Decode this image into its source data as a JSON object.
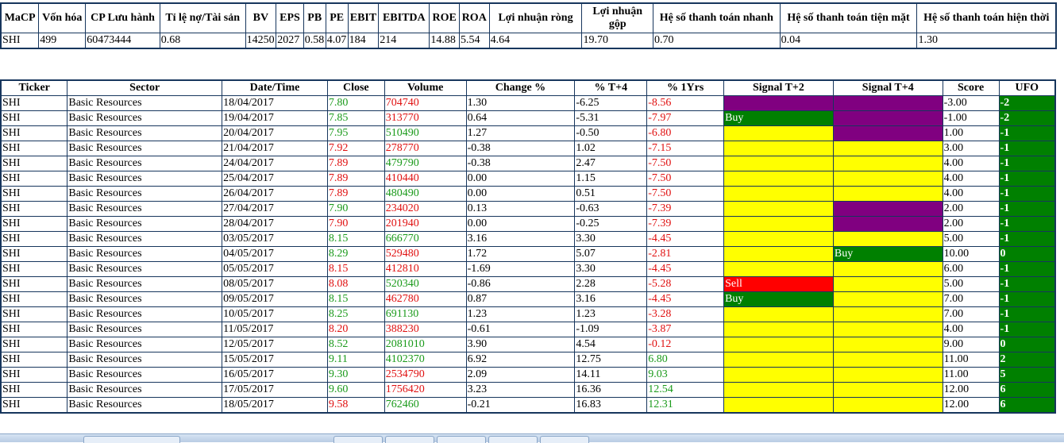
{
  "summary": {
    "headers": [
      "MaCP",
      "Vốn hóa",
      "CP Lưu hành",
      "Tỉ lệ nợ/Tài sản",
      "BV",
      "EPS",
      "PB",
      "PE",
      "EBIT",
      "EBITDA",
      "ROE",
      "ROA",
      "Lợi nhuận ròng",
      "Lợi nhuận gộp",
      "Hệ số thanh toán nhanh",
      "Hệ số thanh toán tiện mặt",
      "Hệ số thanh toán hiện thời"
    ],
    "row": [
      "SHI",
      "499",
      "60473444",
      "0.68",
      "14250",
      "2027",
      "0.58",
      "4.07",
      "184",
      "214",
      "14.88",
      "5.54",
      "4.64",
      "19.70",
      "0.70",
      "0.04",
      "1.30"
    ]
  },
  "detail": {
    "headers": [
      "Ticker",
      "Sector",
      "Date/Time",
      "Close",
      "Volume",
      "Change %",
      "% T+4",
      "% 1Yrs",
      "Signal T+2",
      "Signal T+4",
      "Score",
      "UFO"
    ],
    "colors": {
      "purple": "#800080",
      "green": "#008000",
      "yellow": "#ffff00",
      "red": "#ff0000",
      "up_text": "#1a9a1a",
      "down_text": "#e01010"
    },
    "rows": [
      {
        "ticker": "SHI",
        "sector": "Basic Resources",
        "date": "18/04/2017",
        "close": "7.80",
        "close_c": "g",
        "volume": "704740",
        "volume_c": "r",
        "change": "1.30",
        "t4": "-6.25",
        "yr": "-8.56",
        "yr_c": "r",
        "s2": "",
        "s2_c": "purple",
        "s4": "",
        "s4_c": "purple",
        "score": "-3.00",
        "ufo": "-2"
      },
      {
        "ticker": "SHI",
        "sector": "Basic Resources",
        "date": "19/04/2017",
        "close": "7.85",
        "close_c": "g",
        "volume": "313770",
        "volume_c": "r",
        "change": "0.64",
        "t4": "-5.31",
        "yr": "-7.97",
        "yr_c": "r",
        "s2": "Buy",
        "s2_c": "green",
        "s4": "",
        "s4_c": "purple",
        "score": "-1.00",
        "ufo": "-2"
      },
      {
        "ticker": "SHI",
        "sector": "Basic Resources",
        "date": "20/04/2017",
        "close": "7.95",
        "close_c": "g",
        "volume": "510490",
        "volume_c": "g",
        "change": "1.27",
        "t4": "-0.50",
        "yr": "-6.80",
        "yr_c": "r",
        "s2": "",
        "s2_c": "yellow",
        "s4": "",
        "s4_c": "purple",
        "score": "1.00",
        "ufo": "-1"
      },
      {
        "ticker": "SHI",
        "sector": "Basic Resources",
        "date": "21/04/2017",
        "close": "7.92",
        "close_c": "r",
        "volume": "278770",
        "volume_c": "r",
        "change": "-0.38",
        "t4": "1.02",
        "yr": "-7.15",
        "yr_c": "r",
        "s2": "",
        "s2_c": "yellow",
        "s4": "",
        "s4_c": "yellow",
        "score": "3.00",
        "ufo": "-1"
      },
      {
        "ticker": "SHI",
        "sector": "Basic Resources",
        "date": "24/04/2017",
        "close": "7.89",
        "close_c": "r",
        "volume": "479790",
        "volume_c": "g",
        "change": "-0.38",
        "t4": "2.47",
        "yr": "-7.50",
        "yr_c": "r",
        "s2": "",
        "s2_c": "yellow",
        "s4": "",
        "s4_c": "yellow",
        "score": "4.00",
        "ufo": "-1"
      },
      {
        "ticker": "SHI",
        "sector": "Basic Resources",
        "date": "25/04/2017",
        "close": "7.89",
        "close_c": "r",
        "volume": "410440",
        "volume_c": "r",
        "change": "0.00",
        "t4": "1.15",
        "yr": "-7.50",
        "yr_c": "r",
        "s2": "",
        "s2_c": "yellow",
        "s4": "",
        "s4_c": "yellow",
        "score": "4.00",
        "ufo": "-1"
      },
      {
        "ticker": "SHI",
        "sector": "Basic Resources",
        "date": "26/04/2017",
        "close": "7.89",
        "close_c": "r",
        "volume": "480490",
        "volume_c": "g",
        "change": "0.00",
        "t4": "0.51",
        "yr": "-7.50",
        "yr_c": "r",
        "s2": "",
        "s2_c": "yellow",
        "s4": "",
        "s4_c": "yellow",
        "score": "4.00",
        "ufo": "-1"
      },
      {
        "ticker": "SHI",
        "sector": "Basic Resources",
        "date": "27/04/2017",
        "close": "7.90",
        "close_c": "g",
        "volume": "234020",
        "volume_c": "r",
        "change": "0.13",
        "t4": "-0.63",
        "yr": "-7.39",
        "yr_c": "r",
        "s2": "",
        "s2_c": "yellow",
        "s4": "",
        "s4_c": "purple",
        "score": "2.00",
        "ufo": "-1"
      },
      {
        "ticker": "SHI",
        "sector": "Basic Resources",
        "date": "28/04/2017",
        "close": "7.90",
        "close_c": "r",
        "volume": "201940",
        "volume_c": "r",
        "change": "0.00",
        "t4": "-0.25",
        "yr": "-7.39",
        "yr_c": "r",
        "s2": "",
        "s2_c": "yellow",
        "s4": "",
        "s4_c": "purple",
        "score": "2.00",
        "ufo": "-1"
      },
      {
        "ticker": "SHI",
        "sector": "Basic Resources",
        "date": "03/05/2017",
        "close": "8.15",
        "close_c": "g",
        "volume": "666770",
        "volume_c": "g",
        "change": "3.16",
        "t4": "3.30",
        "yr": "-4.45",
        "yr_c": "r",
        "s2": "",
        "s2_c": "yellow",
        "s4": "",
        "s4_c": "yellow",
        "score": "5.00",
        "ufo": "-1"
      },
      {
        "ticker": "SHI",
        "sector": "Basic Resources",
        "date": "04/05/2017",
        "close": "8.29",
        "close_c": "g",
        "volume": "529480",
        "volume_c": "r",
        "change": "1.72",
        "t4": "5.07",
        "yr": "-2.81",
        "yr_c": "r",
        "s2": "",
        "s2_c": "yellow",
        "s4": "Buy",
        "s4_c": "green",
        "score": "10.00",
        "ufo": "0"
      },
      {
        "ticker": "SHI",
        "sector": "Basic Resources",
        "date": "05/05/2017",
        "close": "8.15",
        "close_c": "r",
        "volume": "412810",
        "volume_c": "r",
        "change": "-1.69",
        "t4": "3.30",
        "yr": "-4.45",
        "yr_c": "r",
        "s2": "",
        "s2_c": "yellow",
        "s4": "",
        "s4_c": "yellow",
        "score": "6.00",
        "ufo": "-1"
      },
      {
        "ticker": "SHI",
        "sector": "Basic Resources",
        "date": "08/05/2017",
        "close": "8.08",
        "close_c": "r",
        "volume": "520340",
        "volume_c": "g",
        "change": "-0.86",
        "t4": "2.28",
        "yr": "-5.28",
        "yr_c": "r",
        "s2": "Sell",
        "s2_c": "red",
        "s4": "",
        "s4_c": "yellow",
        "score": "5.00",
        "ufo": "-1"
      },
      {
        "ticker": "SHI",
        "sector": "Basic Resources",
        "date": "09/05/2017",
        "close": "8.15",
        "close_c": "g",
        "volume": "462780",
        "volume_c": "r",
        "change": "0.87",
        "t4": "3.16",
        "yr": "-4.45",
        "yr_c": "r",
        "s2": "Buy",
        "s2_c": "green",
        "s4": "",
        "s4_c": "yellow",
        "score": "7.00",
        "ufo": "-1"
      },
      {
        "ticker": "SHI",
        "sector": "Basic Resources",
        "date": "10/05/2017",
        "close": "8.25",
        "close_c": "g",
        "volume": "691130",
        "volume_c": "g",
        "change": "1.23",
        "t4": "1.23",
        "yr": "-3.28",
        "yr_c": "r",
        "s2": "",
        "s2_c": "yellow",
        "s4": "",
        "s4_c": "yellow",
        "score": "7.00",
        "ufo": "-1"
      },
      {
        "ticker": "SHI",
        "sector": "Basic Resources",
        "date": "11/05/2017",
        "close": "8.20",
        "close_c": "r",
        "volume": "388230",
        "volume_c": "r",
        "change": "-0.61",
        "t4": "-1.09",
        "yr": "-3.87",
        "yr_c": "r",
        "s2": "",
        "s2_c": "yellow",
        "s4": "",
        "s4_c": "yellow",
        "score": "4.00",
        "ufo": "-1"
      },
      {
        "ticker": "SHI",
        "sector": "Basic Resources",
        "date": "12/05/2017",
        "close": "8.52",
        "close_c": "g",
        "volume": "2081010",
        "volume_c": "g",
        "change": "3.90",
        "t4": "4.54",
        "yr": "-0.12",
        "yr_c": "r",
        "s2": "",
        "s2_c": "yellow",
        "s4": "",
        "s4_c": "yellow",
        "score": "9.00",
        "ufo": "0"
      },
      {
        "ticker": "SHI",
        "sector": "Basic Resources",
        "date": "15/05/2017",
        "close": "9.11",
        "close_c": "g",
        "volume": "4102370",
        "volume_c": "g",
        "change": "6.92",
        "t4": "12.75",
        "yr": "6.80",
        "yr_c": "g",
        "s2": "",
        "s2_c": "yellow",
        "s4": "",
        "s4_c": "yellow",
        "score": "11.00",
        "ufo": "2"
      },
      {
        "ticker": "SHI",
        "sector": "Basic Resources",
        "date": "16/05/2017",
        "close": "9.30",
        "close_c": "g",
        "volume": "2534790",
        "volume_c": "r",
        "change": "2.09",
        "t4": "14.11",
        "yr": "9.03",
        "yr_c": "g",
        "s2": "",
        "s2_c": "yellow",
        "s4": "",
        "s4_c": "yellow",
        "score": "11.00",
        "ufo": "5"
      },
      {
        "ticker": "SHI",
        "sector": "Basic Resources",
        "date": "17/05/2017",
        "close": "9.60",
        "close_c": "g",
        "volume": "1756420",
        "volume_c": "r",
        "change": "3.23",
        "t4": "16.36",
        "yr": "12.54",
        "yr_c": "g",
        "s2": "",
        "s2_c": "yellow",
        "s4": "",
        "s4_c": "yellow",
        "score": "12.00",
        "ufo": "6"
      },
      {
        "ticker": "SHI",
        "sector": "Basic Resources",
        "date": "18/05/2017",
        "close": "9.58",
        "close_c": "r",
        "volume": "762460",
        "volume_c": "g",
        "change": "-0.21",
        "t4": "16.83",
        "yr": "12.31",
        "yr_c": "g",
        "s2": "",
        "s2_c": "yellow",
        "s4": "",
        "s4_c": "yellow",
        "score": "12.00",
        "ufo": "6"
      }
    ]
  }
}
